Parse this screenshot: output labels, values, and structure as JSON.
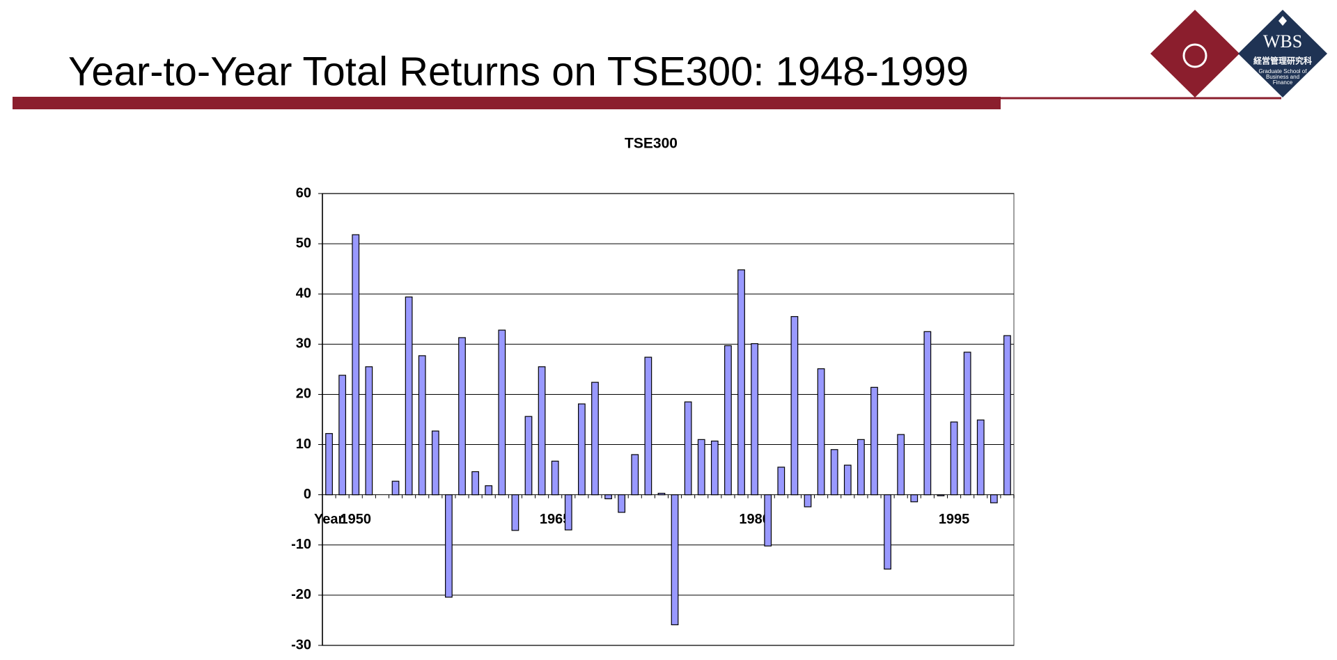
{
  "header": {
    "title": "Year-to-Year Total Returns on TSE300: 1948-1999",
    "logo": {
      "name": "WBS",
      "subtitle": "経営管理研究科",
      "school": [
        "Graduate School of",
        "Business and",
        "Finance"
      ]
    }
  },
  "chart_data": {
    "type": "bar",
    "title": "TSE300",
    "x_label": "Year",
    "categories": [
      null,
      null,
      "1950",
      null,
      null,
      null,
      null,
      null,
      null,
      null,
      null,
      null,
      null,
      null,
      null,
      null,
      null,
      "1965",
      null,
      null,
      null,
      null,
      null,
      null,
      null,
      null,
      null,
      null,
      null,
      null,
      null,
      null,
      "1980",
      null,
      null,
      null,
      null,
      null,
      null,
      null,
      null,
      null,
      null,
      null,
      null,
      null,
      null,
      "1995",
      null,
      null,
      null,
      null
    ],
    "values": [
      12.2,
      23.8,
      51.8,
      25.5,
      0,
      2.7,
      39.4,
      27.7,
      12.7,
      -20.4,
      31.3,
      4.6,
      1.8,
      32.8,
      -7.1,
      15.6,
      25.5,
      6.7,
      -7.0,
      18.1,
      22.4,
      -0.8,
      -3.5,
      8.0,
      27.4,
      0.3,
      -25.9,
      18.5,
      11.0,
      10.7,
      29.7,
      44.8,
      30.1,
      -10.2,
      5.5,
      35.5,
      -2.4,
      25.1,
      9.0,
      5.9,
      11.0,
      21.4,
      -14.8,
      12.0,
      -1.4,
      32.5,
      -0.2,
      14.5,
      28.4,
      14.9,
      -1.6,
      31.7
    ],
    "color": "#9999ff",
    "ylim": [
      -30,
      60
    ],
    "yticks": [
      -30,
      -20,
      -10,
      0,
      10,
      20,
      30,
      40,
      50,
      60
    ],
    "grid": true
  }
}
